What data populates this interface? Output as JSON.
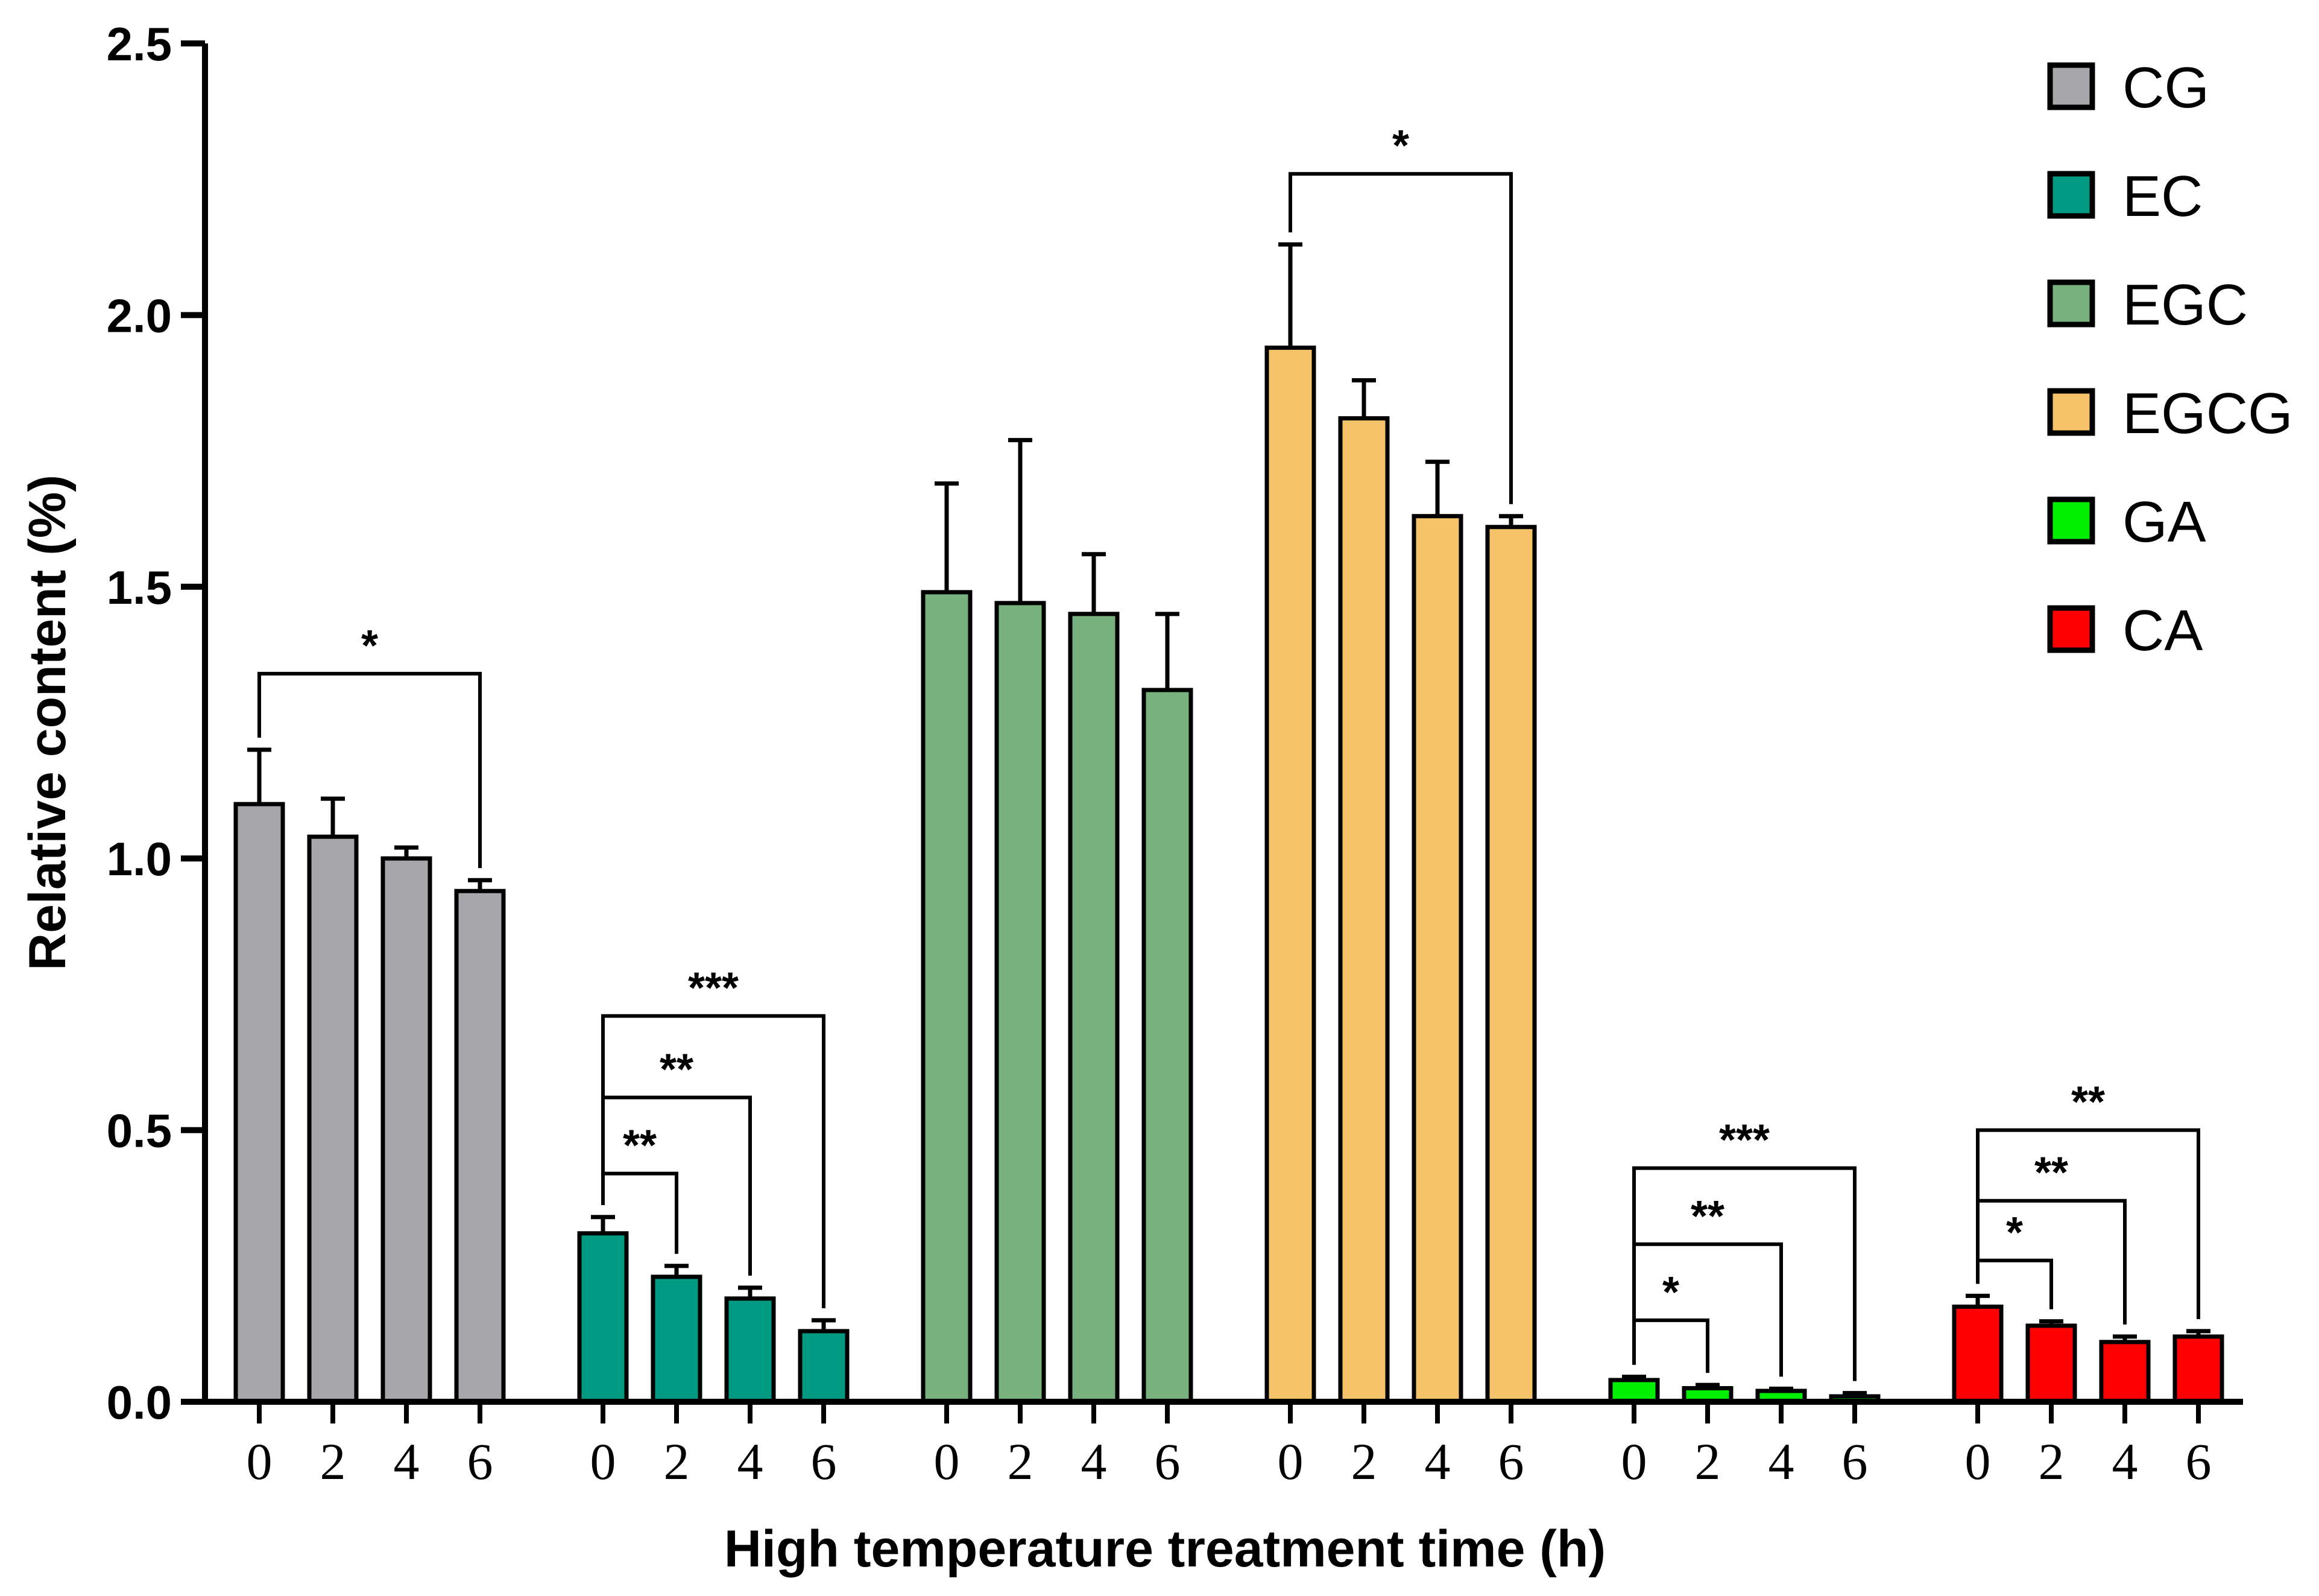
{
  "chart_data": {
    "type": "bar",
    "title": "",
    "xlabel": "High temperature treatment time (h)",
    "ylabel": "Relative content (%)",
    "ylim": [
      0,
      2.5
    ],
    "yticks": [
      "0.0",
      "0.5",
      "1.0",
      "1.5",
      "2.0",
      "2.5"
    ],
    "categories": [
      "0",
      "2",
      "4",
      "6"
    ],
    "legend_position": "top-right",
    "series": [
      {
        "name": "CG",
        "color": "#A7A6AB",
        "values": [
          1.1,
          1.04,
          1.0,
          0.94
        ],
        "errors": [
          0.1,
          0.07,
          0.02,
          0.02
        ]
      },
      {
        "name": "EC",
        "color": "#009A82",
        "values": [
          0.31,
          0.23,
          0.19,
          0.13
        ],
        "errors": [
          0.03,
          0.02,
          0.02,
          0.02
        ]
      },
      {
        "name": "EGC",
        "color": "#77B17D",
        "values": [
          1.49,
          1.47,
          1.45,
          1.31
        ],
        "errors": [
          0.2,
          0.3,
          0.11,
          0.14
        ]
      },
      {
        "name": "EGCG",
        "color": "#F5C46A",
        "values": [
          1.94,
          1.81,
          1.63,
          1.61
        ],
        "errors": [
          0.19,
          0.07,
          0.1,
          0.02
        ]
      },
      {
        "name": "GA",
        "color": "#00EE00",
        "values": [
          0.04,
          0.025,
          0.02,
          0.01
        ],
        "errors": [
          0.006,
          0.006,
          0.004,
          0.006
        ]
      },
      {
        "name": "CA",
        "color": "#FF0000",
        "values": [
          0.175,
          0.14,
          0.11,
          0.12
        ],
        "errors": [
          0.02,
          0.008,
          0.01,
          0.01
        ]
      }
    ],
    "significance": [
      {
        "series": 0,
        "from": 0,
        "to": 3,
        "label": "*",
        "level": 1.34
      },
      {
        "series": 1,
        "from": 0,
        "to": 1,
        "label": "**",
        "level": 0.42
      },
      {
        "series": 1,
        "from": 0,
        "to": 2,
        "label": "**",
        "level": 0.56
      },
      {
        "series": 1,
        "from": 0,
        "to": 3,
        "label": "***",
        "level": 0.71
      },
      {
        "series": 3,
        "from": 0,
        "to": 3,
        "label": "*",
        "level": 2.26
      },
      {
        "series": 4,
        "from": 0,
        "to": 1,
        "label": "*",
        "level": 0.15
      },
      {
        "series": 4,
        "from": 0,
        "to": 2,
        "label": "**",
        "level": 0.29
      },
      {
        "series": 4,
        "from": 0,
        "to": 3,
        "label": "***",
        "level": 0.43
      },
      {
        "series": 5,
        "from": 0,
        "to": 1,
        "label": "*",
        "level": 0.26
      },
      {
        "series": 5,
        "from": 0,
        "to": 2,
        "label": "**",
        "level": 0.37
      },
      {
        "series": 5,
        "from": 0,
        "to": 3,
        "label": "**",
        "level": 0.5
      }
    ]
  }
}
